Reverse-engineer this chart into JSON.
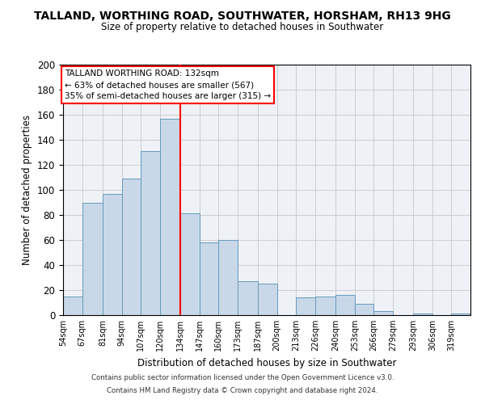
{
  "title": "TALLAND, WORTHING ROAD, SOUTHWATER, HORSHAM, RH13 9HG",
  "subtitle": "Size of property relative to detached houses in Southwater",
  "xlabel": "Distribution of detached houses by size in Southwater",
  "ylabel": "Number of detached properties",
  "bin_labels": [
    "54sqm",
    "67sqm",
    "81sqm",
    "94sqm",
    "107sqm",
    "120sqm",
    "134sqm",
    "147sqm",
    "160sqm",
    "173sqm",
    "187sqm",
    "200sqm",
    "213sqm",
    "226sqm",
    "240sqm",
    "253sqm",
    "266sqm",
    "279sqm",
    "293sqm",
    "306sqm",
    "319sqm"
  ],
  "bin_edges": [
    54,
    67,
    81,
    94,
    107,
    120,
    134,
    147,
    160,
    173,
    187,
    200,
    213,
    226,
    240,
    253,
    266,
    279,
    293,
    306,
    319
  ],
  "bar_heights": [
    15,
    90,
    97,
    109,
    131,
    157,
    81,
    58,
    60,
    27,
    25,
    0,
    14,
    15,
    16,
    9,
    3,
    0,
    1,
    0,
    1
  ],
  "bar_color": "#c8d8e8",
  "bar_edge_color": "#6699bb",
  "reference_line_x": 134,
  "reference_line_color": "red",
  "annotation_title": "TALLAND WORTHING ROAD: 132sqm",
  "annotation_line1": "← 63% of detached houses are smaller (567)",
  "annotation_line2": "35% of semi-detached houses are larger (315) →",
  "ylim": [
    0,
    200
  ],
  "yticks": [
    0,
    20,
    40,
    60,
    80,
    100,
    120,
    140,
    160,
    180,
    200
  ],
  "grid_color": "#cccccc",
  "background_color": "#eef2f7",
  "footer1": "Contains HM Land Registry data © Crown copyright and database right 2024.",
  "footer2": "Contains public sector information licensed under the Open Government Licence v3.0."
}
